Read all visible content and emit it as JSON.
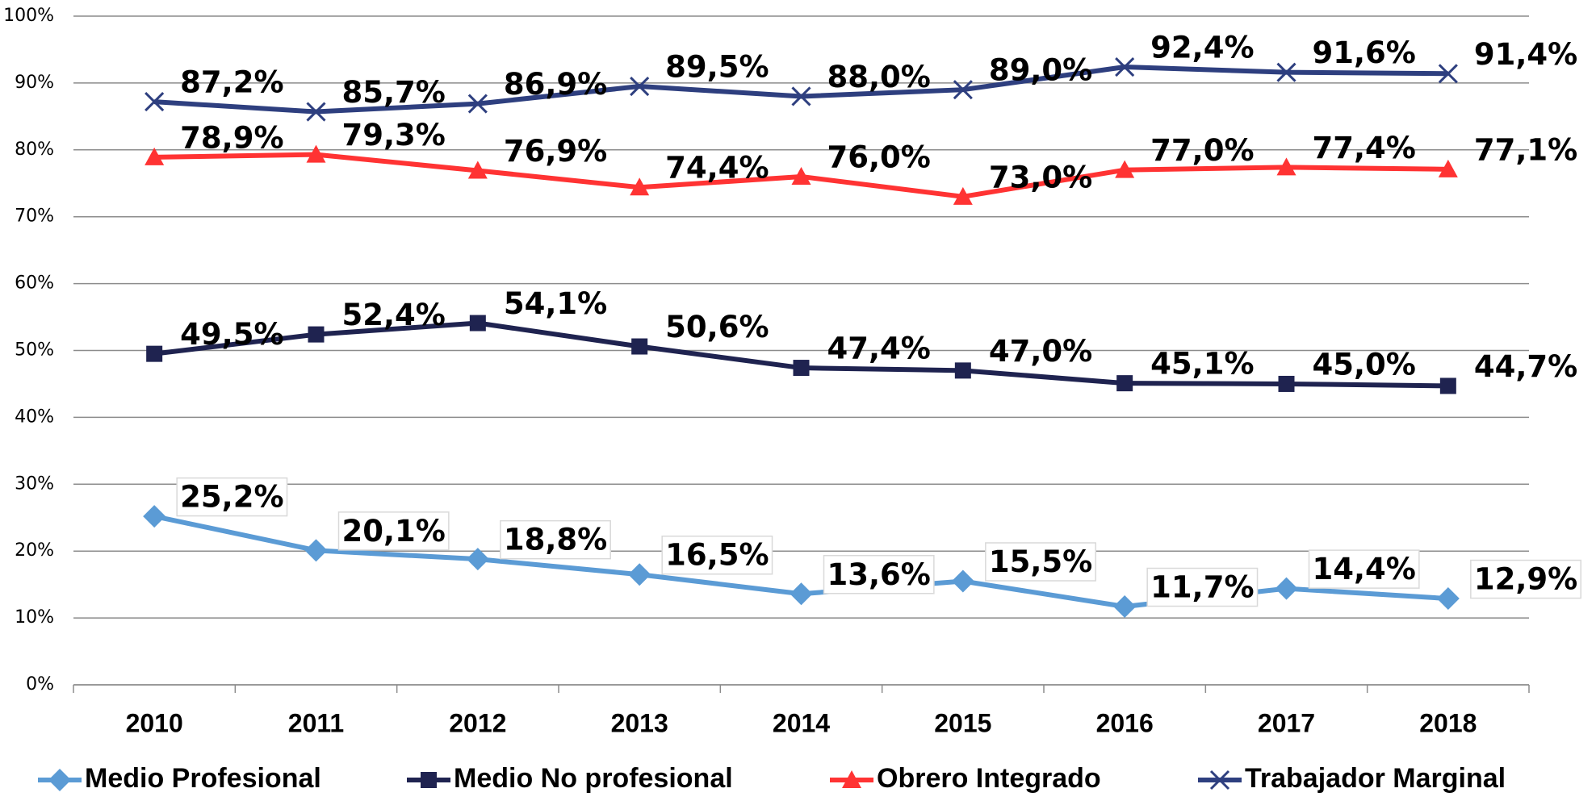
{
  "chart_data": {
    "type": "line",
    "categories": [
      "2010",
      "2011",
      "2012",
      "2013",
      "2014",
      "2015",
      "2016",
      "2017",
      "2018"
    ],
    "series": [
      {
        "name": "Medio Profesional",
        "color": "#5b9bd5",
        "marker": "diamond",
        "values": [
          25.2,
          20.1,
          18.8,
          16.5,
          13.6,
          15.5,
          11.7,
          14.4,
          12.9
        ],
        "value_labels": [
          "25,2%",
          "20,1%",
          "18,8%",
          "16,5%",
          "13,6%",
          "15,5%",
          "11,7%",
          "14,4%",
          "12,9%"
        ]
      },
      {
        "name": "Medio No profesional",
        "color": "#1f2350",
        "marker": "square",
        "values": [
          49.5,
          52.4,
          54.1,
          50.6,
          47.4,
          47.0,
          45.1,
          45.0,
          44.7
        ],
        "value_labels": [
          "49,5%",
          "52,4%",
          "54,1%",
          "50,6%",
          "47,4%",
          "47,0%",
          "45,1%",
          "45,0%",
          "44,7%"
        ]
      },
      {
        "name": "Obrero Integrado",
        "color": "#ff3333",
        "marker": "triangle",
        "values": [
          78.9,
          79.3,
          76.9,
          74.4,
          76.0,
          73.0,
          77.0,
          77.4,
          77.1
        ],
        "value_labels": [
          "78,9%",
          "79,3%",
          "76,9%",
          "74,4%",
          "76,0%",
          "73,0%",
          "77,0%",
          "77,4%",
          "77,1%"
        ]
      },
      {
        "name": "Trabajador Marginal",
        "color": "#2e3f7f",
        "marker": "x",
        "values": [
          87.2,
          85.7,
          86.9,
          89.5,
          88.0,
          89.0,
          92.4,
          91.6,
          91.4
        ],
        "value_labels": [
          "87,2%",
          "85,7%",
          "86,9%",
          "89,5%",
          "88,0%",
          "89,0%",
          "92,4%",
          "91,6%",
          "91,4%"
        ]
      }
    ],
    "ylim": [
      0,
      100
    ],
    "yticks": [
      {
        "value": 0,
        "label": "0%"
      },
      {
        "value": 10,
        "label": "10%"
      },
      {
        "value": 20,
        "label": "20%"
      },
      {
        "value": 30,
        "label": "30%"
      },
      {
        "value": 40,
        "label": "40%"
      },
      {
        "value": 50,
        "label": "50%"
      },
      {
        "value": 60,
        "label": "60%"
      },
      {
        "value": 70,
        "label": "70%"
      },
      {
        "value": 80,
        "label": "80%"
      },
      {
        "value": 90,
        "label": "90%"
      },
      {
        "value": 100,
        "label": "100%"
      }
    ],
    "grid": true,
    "legend": "bottom"
  }
}
